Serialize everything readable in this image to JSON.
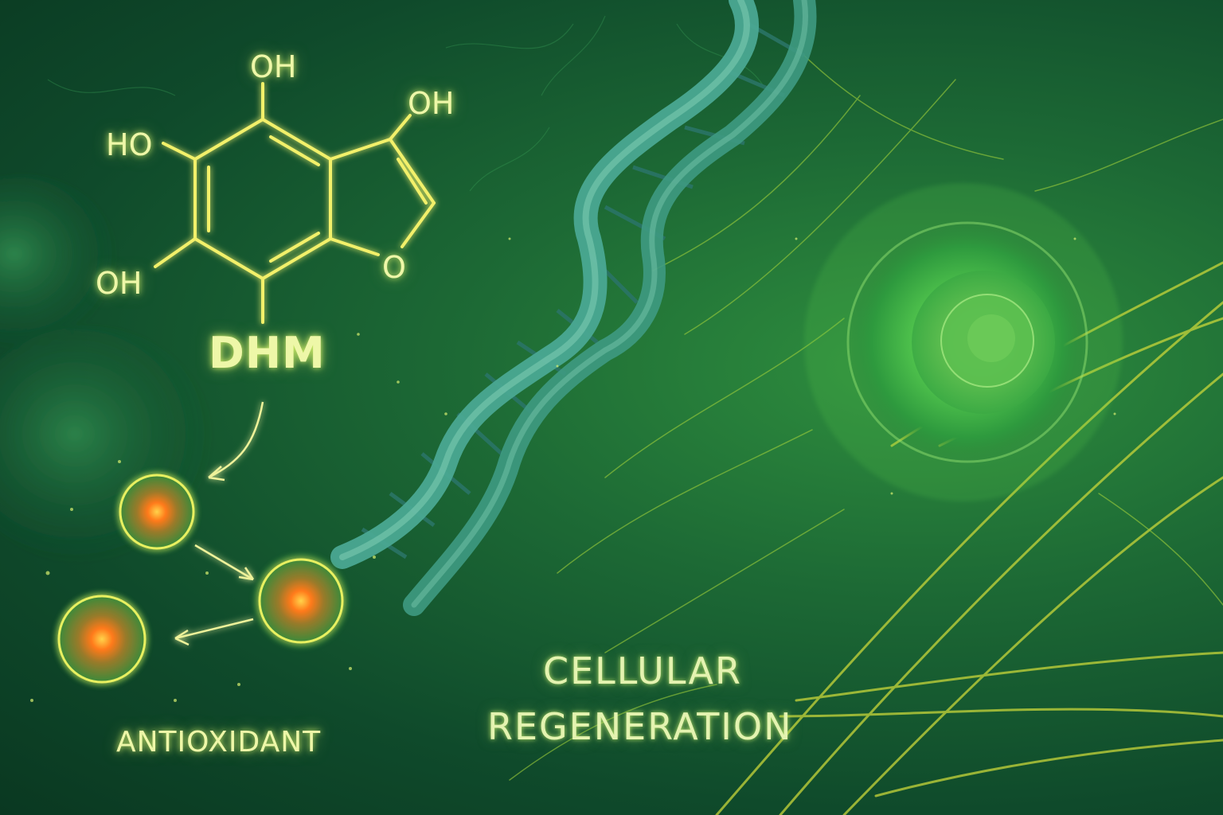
{
  "molecule": {
    "name": "DHM",
    "atoms": {
      "top": "OH",
      "right": "OH",
      "left": "HO",
      "bottom": "OH",
      "ring_oxygen": "O"
    }
  },
  "labels": {
    "antioxidant": "ANTIOXIDANT",
    "cellular": "CELLULAR",
    "regeneration": "REGENERATION"
  },
  "colors": {
    "background": "#1d6a35",
    "glow": "#eef7a8",
    "dna": "#3f9a86",
    "cell": "#4cc64a",
    "free_radical_core": "#ff7a1a"
  }
}
